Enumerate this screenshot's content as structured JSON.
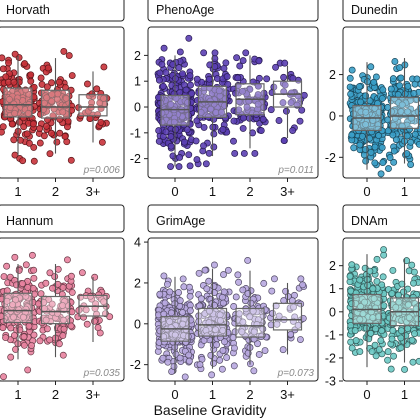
{
  "figure": {
    "x_axis_title": "Baseline Gravidity"
  },
  "chart_data": [
    {
      "type": "scatter",
      "title": "Horvath",
      "categories": [
        "1",
        "2",
        "3+"
      ],
      "ylim": [
        -3.2,
        3.6
      ],
      "yticks": [],
      "p_value": "p=0.006",
      "color": "#c8323a",
      "groups": [
        {
          "category": "1",
          "n": 150,
          "median": 0.1,
          "q1": -0.45,
          "q3": 0.85,
          "whisker_low": -2.2,
          "whisker_high": 2.3,
          "min": -2.9,
          "max": 3.0
        },
        {
          "category": "2",
          "n": 100,
          "median": 0.0,
          "q1": -0.5,
          "q3": 0.75,
          "whisker_low": -2.1,
          "whisker_high": 2.2,
          "min": -2.6,
          "max": 2.5
        },
        {
          "category": "3+",
          "n": 35,
          "median": 0.0,
          "q1": -0.4,
          "q3": 0.55,
          "whisker_low": -1.6,
          "whisker_high": 1.6,
          "min": -1.9,
          "max": 1.8
        }
      ]
    },
    {
      "type": "scatter",
      "title": "PhenoAge",
      "categories": [
        "0",
        "1",
        "2",
        "3+"
      ],
      "ylim": [
        -2.75,
        3.1
      ],
      "yticks": [
        -2,
        -1,
        0,
        1,
        2
      ],
      "p_value": "p=0.011",
      "color": "#5b3fb3",
      "groups": [
        {
          "category": "0",
          "n": 260,
          "median": -0.1,
          "q1": -0.7,
          "q3": 0.45,
          "whisker_low": -2.3,
          "whisker_high": 2.0,
          "min": -2.6,
          "max": 2.7
        },
        {
          "category": "1",
          "n": 140,
          "median": 0.2,
          "q1": -0.4,
          "q3": 0.8,
          "whisker_low": -1.9,
          "whisker_high": 2.0,
          "min": -2.2,
          "max": 2.1
        },
        {
          "category": "2",
          "n": 90,
          "median": 0.3,
          "q1": -0.3,
          "q3": 0.9,
          "whisker_low": -1.6,
          "whisker_high": 2.0,
          "min": -1.8,
          "max": 2.1
        },
        {
          "category": "3+",
          "n": 35,
          "median": 0.5,
          "q1": 0.0,
          "q3": 1.0,
          "whisker_low": -1.2,
          "whisker_high": 1.6,
          "min": -1.3,
          "max": 1.7
        }
      ]
    },
    {
      "type": "scatter",
      "title": "Dunedin",
      "categories": [
        "0",
        "1"
      ],
      "ylim": [
        -3.0,
        4.3
      ],
      "yticks": [
        -2,
        0,
        2
      ],
      "p_value": "",
      "color": "#3a9ec8",
      "groups": [
        {
          "category": "0",
          "n": 260,
          "median": -0.1,
          "q1": -0.7,
          "q3": 0.5,
          "whisker_low": -2.6,
          "whisker_high": 2.6,
          "min": -2.8,
          "max": 3.2
        },
        {
          "category": "1",
          "n": 150,
          "median": 0.0,
          "q1": -0.6,
          "q3": 0.9,
          "whisker_low": -2.3,
          "whisker_high": 2.8,
          "min": -2.7,
          "max": 3.0
        }
      ]
    },
    {
      "type": "scatter",
      "title": "Hannum",
      "categories": [
        "1",
        "2",
        "3+"
      ],
      "ylim": [
        -3.2,
        3.4
      ],
      "yticks": [],
      "p_value": "p=0.035",
      "color": "#e8829e",
      "groups": [
        {
          "category": "1",
          "n": 150,
          "median": 0.05,
          "q1": -0.5,
          "q3": 0.85,
          "whisker_low": -2.2,
          "whisker_high": 2.2,
          "min": -3.0,
          "max": 2.8
        },
        {
          "category": "2",
          "n": 100,
          "median": 0.0,
          "q1": -0.55,
          "q3": 0.7,
          "whisker_low": -2.1,
          "whisker_high": 2.2,
          "min": -2.5,
          "max": 2.5
        },
        {
          "category": "3+",
          "n": 35,
          "median": 0.25,
          "q1": -0.2,
          "q3": 0.75,
          "whisker_low": -1.4,
          "whisker_high": 1.6,
          "min": -1.6,
          "max": 1.8
        }
      ]
    },
    {
      "type": "scatter",
      "title": "GrimAge",
      "categories": [
        "0",
        "1",
        "2",
        "3+"
      ],
      "ylim": [
        -2.8,
        4.2
      ],
      "yticks": [
        -2,
        0,
        2,
        4
      ],
      "p_value": "p=0.073",
      "color": "#b8a8e0",
      "groups": [
        {
          "category": "0",
          "n": 260,
          "median": -0.25,
          "q1": -0.85,
          "q3": 0.35,
          "whisker_low": -2.4,
          "whisker_high": 2.3,
          "min": -2.6,
          "max": 3.2
        },
        {
          "category": "1",
          "n": 140,
          "median": -0.05,
          "q1": -0.6,
          "q3": 0.75,
          "whisker_low": -2.2,
          "whisker_high": 2.7,
          "min": -2.5,
          "max": 3.7
        },
        {
          "category": "2",
          "n": 90,
          "median": -0.1,
          "q1": -0.65,
          "q3": 0.75,
          "whisker_low": -2.0,
          "whisker_high": 2.6,
          "min": -2.3,
          "max": 3.1
        },
        {
          "category": "3+",
          "n": 35,
          "median": 0.2,
          "q1": -0.3,
          "q3": 1.0,
          "whisker_low": -1.5,
          "whisker_high": 2.0,
          "min": -1.7,
          "max": 2.2
        }
      ]
    },
    {
      "type": "scatter",
      "title": "DNAm",
      "categories": [
        "0",
        "1"
      ],
      "ylim": [
        -3.0,
        3.2
      ],
      "yticks": [
        -3,
        -2,
        -1,
        0,
        1,
        2
      ],
      "p_value": "",
      "color": "#6cc9c4",
      "groups": [
        {
          "category": "0",
          "n": 260,
          "median": 0.1,
          "q1": -0.5,
          "q3": 0.75,
          "whisker_low": -2.4,
          "whisker_high": 2.5,
          "min": -2.7,
          "max": 2.7
        },
        {
          "category": "1",
          "n": 150,
          "median": 0.0,
          "q1": -0.6,
          "q3": 0.6,
          "whisker_low": -2.2,
          "whisker_high": 2.3,
          "min": -2.5,
          "max": 2.5
        }
      ]
    }
  ]
}
